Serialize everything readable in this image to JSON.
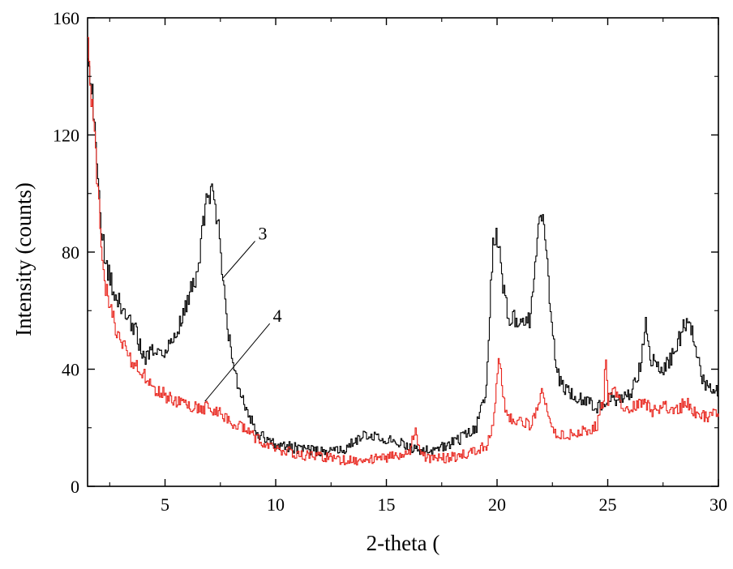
{
  "chart_data": {
    "type": "line",
    "title": "",
    "xlabel": "2-theta (",
    "ylabel": "Intensity (counts)",
    "xlim": [
      1.5,
      30
    ],
    "ylim": [
      0,
      160
    ],
    "x_ticks": [
      5,
      10,
      15,
      20,
      25,
      30
    ],
    "y_ticks": [
      0,
      40,
      80,
      120,
      160
    ],
    "x_tick_labels": [
      "5",
      "10",
      "15",
      "20",
      "25",
      "30"
    ],
    "y_tick_labels": [
      "0",
      "40",
      "80",
      "120",
      "160"
    ],
    "grid": false,
    "series": [
      {
        "name": "3",
        "color": "#000000",
        "points": [
          [
            1.5,
            152
          ],
          [
            1.7,
            132
          ],
          [
            1.9,
            110
          ],
          [
            2.1,
            90
          ],
          [
            2.3,
            75
          ],
          [
            2.5,
            72
          ],
          [
            2.7,
            65
          ],
          [
            3.0,
            62
          ],
          [
            3.3,
            56
          ],
          [
            3.6,
            54
          ],
          [
            4.0,
            44
          ],
          [
            4.5,
            46
          ],
          [
            5.0,
            47
          ],
          [
            5.5,
            52
          ],
          [
            6.0,
            64
          ],
          [
            6.5,
            74
          ],
          [
            6.8,
            96
          ],
          [
            7.0,
            100
          ],
          [
            7.2,
            101
          ],
          [
            7.5,
            80
          ],
          [
            7.8,
            55
          ],
          [
            8.2,
            36
          ],
          [
            8.6,
            28
          ],
          [
            9.0,
            20
          ],
          [
            9.5,
            16
          ],
          [
            10.0,
            14
          ],
          [
            11.0,
            13
          ],
          [
            12.0,
            12
          ],
          [
            13.0,
            12
          ],
          [
            14.0,
            18
          ],
          [
            15.0,
            16
          ],
          [
            16.0,
            14
          ],
          [
            16.5,
            12
          ],
          [
            17.0,
            12
          ],
          [
            18.0,
            15
          ],
          [
            19.0,
            19
          ],
          [
            19.5,
            34
          ],
          [
            19.8,
            84
          ],
          [
            20.0,
            85
          ],
          [
            20.2,
            72
          ],
          [
            20.5,
            56
          ],
          [
            21.0,
            58
          ],
          [
            21.5,
            57
          ],
          [
            21.8,
            86
          ],
          [
            22.0,
            93
          ],
          [
            22.2,
            80
          ],
          [
            22.5,
            50
          ],
          [
            22.8,
            36
          ],
          [
            23.5,
            30
          ],
          [
            24.0,
            29
          ],
          [
            24.5,
            27
          ],
          [
            25.0,
            30
          ],
          [
            25.5,
            29
          ],
          [
            26.0,
            31
          ],
          [
            26.5,
            42
          ],
          [
            26.7,
            57
          ],
          [
            26.9,
            44
          ],
          [
            27.5,
            40
          ],
          [
            28.0,
            46
          ],
          [
            28.5,
            56
          ],
          [
            28.8,
            53
          ],
          [
            29.2,
            38
          ],
          [
            29.5,
            33
          ],
          [
            30.0,
            33
          ]
        ]
      },
      {
        "name": "4",
        "color": "#e8241c",
        "points": [
          [
            1.5,
            148
          ],
          [
            1.7,
            128
          ],
          [
            1.9,
            105
          ],
          [
            2.1,
            84
          ],
          [
            2.3,
            68
          ],
          [
            2.5,
            62
          ],
          [
            2.7,
            55
          ],
          [
            3.0,
            50
          ],
          [
            3.3,
            45
          ],
          [
            3.6,
            42
          ],
          [
            4.0,
            38
          ],
          [
            4.5,
            33
          ],
          [
            5.0,
            31
          ],
          [
            5.5,
            29
          ],
          [
            6.0,
            28
          ],
          [
            6.5,
            27
          ],
          [
            7.0,
            27
          ],
          [
            7.5,
            25
          ],
          [
            8.0,
            22
          ],
          [
            8.5,
            20
          ],
          [
            9.0,
            17
          ],
          [
            9.5,
            14
          ],
          [
            10.0,
            13
          ],
          [
            11.0,
            11
          ],
          [
            12.0,
            10
          ],
          [
            13.0,
            9
          ],
          [
            14.0,
            9
          ],
          [
            15.0,
            10
          ],
          [
            16.0,
            11
          ],
          [
            16.3,
            21
          ],
          [
            16.5,
            11
          ],
          [
            17.0,
            9
          ],
          [
            18.0,
            10
          ],
          [
            19.0,
            12
          ],
          [
            19.5,
            14
          ],
          [
            19.8,
            22
          ],
          [
            20.0,
            38
          ],
          [
            20.1,
            44
          ],
          [
            20.3,
            28
          ],
          [
            20.7,
            22
          ],
          [
            21.5,
            21
          ],
          [
            22.0,
            32
          ],
          [
            22.3,
            25
          ],
          [
            22.7,
            17
          ],
          [
            23.5,
            18
          ],
          [
            24.0,
            19
          ],
          [
            24.5,
            21
          ],
          [
            24.8,
            30
          ],
          [
            24.9,
            46
          ],
          [
            25.0,
            30
          ],
          [
            25.3,
            33
          ],
          [
            25.8,
            25
          ],
          [
            26.5,
            29
          ],
          [
            27.0,
            26
          ],
          [
            27.5,
            28
          ],
          [
            28.0,
            25
          ],
          [
            28.5,
            29
          ],
          [
            29.0,
            24
          ],
          [
            29.5,
            24
          ],
          [
            29.8,
            27
          ],
          [
            30.0,
            22
          ]
        ]
      }
    ],
    "annotations": [
      {
        "text": "3",
        "series": "3",
        "point": [
          7.6,
          71
        ]
      },
      {
        "text": "4",
        "series": "4",
        "point": [
          6.8,
          29
        ]
      }
    ]
  }
}
